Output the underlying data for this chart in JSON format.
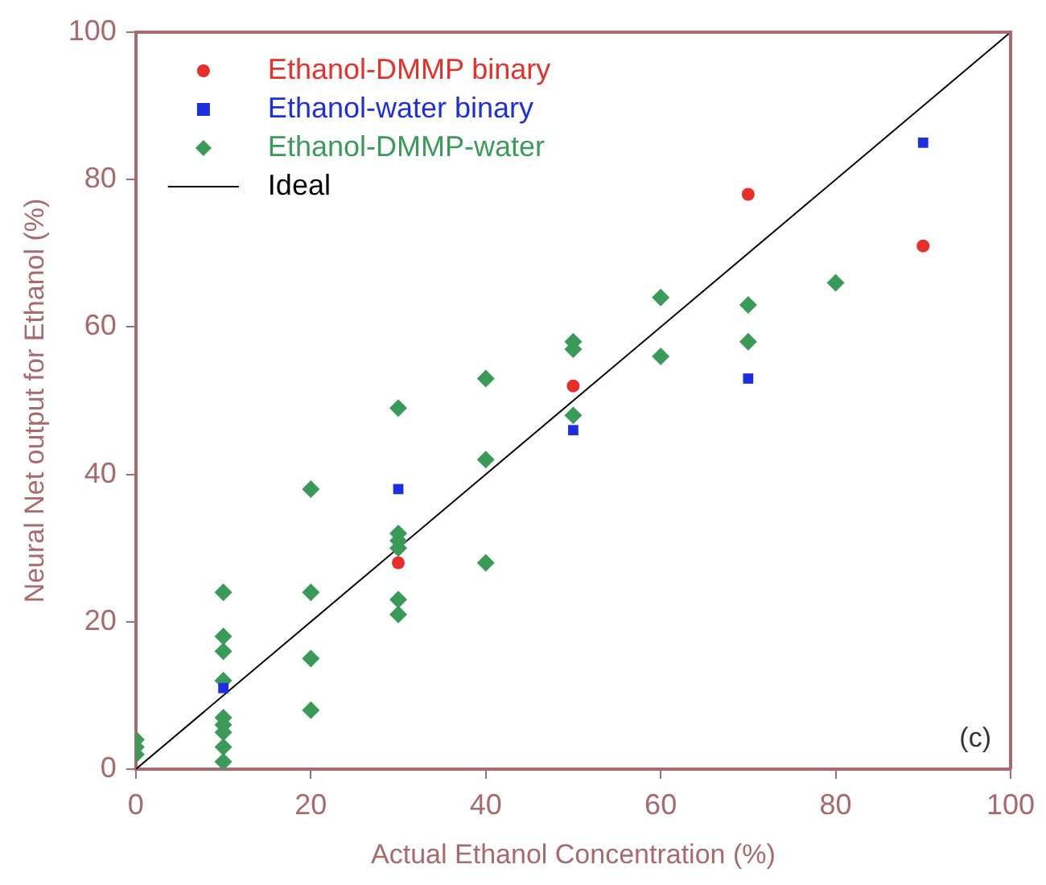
{
  "chart_data": {
    "type": "scatter",
    "xlabel": "Actual Ethanol Concentration (%)",
    "ylabel": "Neural Net output for Ethanol (%)",
    "xlim": [
      0,
      100
    ],
    "ylim": [
      0,
      100
    ],
    "xticks": [
      0,
      20,
      40,
      60,
      80,
      100
    ],
    "yticks": [
      0,
      20,
      40,
      60,
      80,
      100
    ],
    "grid": false,
    "legend": "top left",
    "annotations": [
      "(c)"
    ],
    "series": [
      {
        "name": "Ethanol-DMMP binary",
        "color": "#e8302a",
        "marker": "circle",
        "x": [
          30,
          50,
          70,
          90
        ],
        "values": [
          28,
          52,
          78,
          71
        ]
      },
      {
        "name": "Ethanol-water binary",
        "color": "#1c2ee0",
        "marker": "square",
        "x": [
          10,
          30,
          50,
          70,
          90
        ],
        "values": [
          11,
          38,
          46,
          53,
          85
        ]
      },
      {
        "name": "Ethanol-DMMP-water",
        "color": "#3a9a58",
        "marker": "diamond",
        "x": [
          0,
          0,
          0,
          10,
          10,
          10,
          10,
          10,
          10,
          10,
          10,
          10,
          20,
          20,
          20,
          20,
          30,
          30,
          30,
          30,
          30,
          30,
          40,
          40,
          40,
          50,
          50,
          50,
          60,
          60,
          70,
          70,
          80
        ],
        "values": [
          4,
          3,
          2,
          24,
          18,
          16,
          12,
          7,
          6,
          5,
          3,
          1,
          38,
          24,
          15,
          8,
          49,
          32,
          31,
          30,
          23,
          21,
          53,
          42,
          28,
          58,
          57,
          48,
          64,
          56,
          63,
          58,
          66
        ]
      },
      {
        "name": "Ideal",
        "type": "line",
        "color": "#000000",
        "marker": "none",
        "x": [
          0,
          100
        ],
        "values": [
          0,
          100
        ]
      }
    ]
  }
}
